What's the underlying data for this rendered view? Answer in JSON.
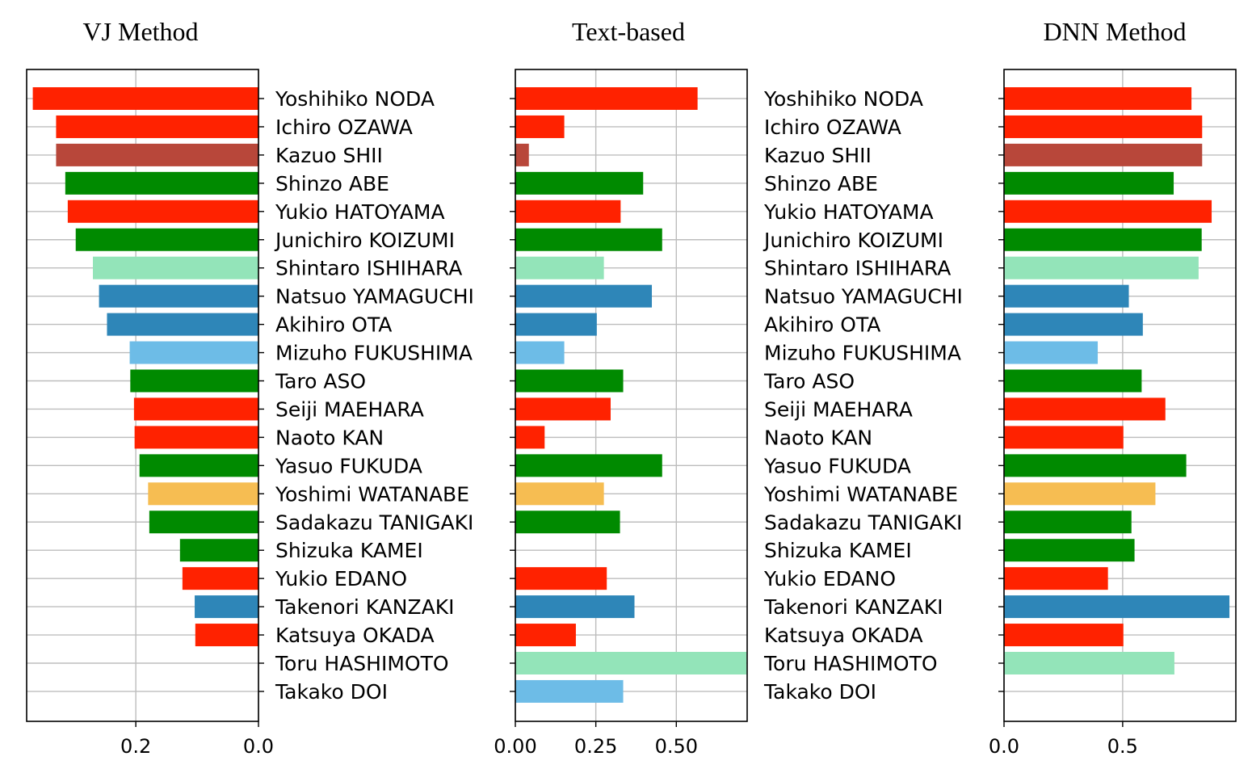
{
  "names": [
    "Yoshihiko NODA",
    "Ichiro OZAWA",
    "Kazuo SHII",
    "Shinzo ABE",
    "Yukio HATOYAMA",
    "Junichiro KOIZUMI",
    "Shintaro ISHIHARA",
    "Natsuo YAMAGUCHI",
    "Akihiro OTA",
    "Mizuho FUKUSHIMA",
    "Taro ASO",
    "Seiji MAEHARA",
    "Naoto KAN",
    "Yasuo FUKUDA",
    "Yoshimi WATANABE",
    "Sadakazu TANIGAKI",
    "Shizuka KAMEI",
    "Yukio EDANO",
    "Takenori KANZAKI",
    "Katsuya OKADA",
    "Toru HASHIMOTO",
    "Takako DOI"
  ],
  "colors": [
    "#ff2200",
    "#ff2200",
    "#b8473a",
    "#008a00",
    "#ff2200",
    "#008a00",
    "#93e4b9",
    "#2e86b8",
    "#2e86b8",
    "#6dbce7",
    "#008a00",
    "#ff2200",
    "#ff2200",
    "#008a00",
    "#f6bd52",
    "#008a00",
    "#008a00",
    "#ff2200",
    "#2e86b8",
    "#ff2200",
    "#93e4b9",
    "#6dbce7"
  ],
  "chart_data": [
    {
      "type": "bar",
      "orientation": "horizontal",
      "title": "VJ Method",
      "x_inverted": true,
      "xlim": [
        0.378,
        0.0
      ],
      "xticks": [
        0.2,
        0.0
      ],
      "xtick_labels": [
        "0.2",
        "0.0"
      ],
      "values": [
        0.368,
        0.33,
        0.33,
        0.315,
        0.311,
        0.298,
        0.27,
        0.26,
        0.247,
        0.21,
        0.209,
        0.203,
        0.202,
        0.194,
        0.18,
        0.178,
        0.128,
        0.124,
        0.104,
        0.103,
        0.0,
        0.0
      ]
    },
    {
      "type": "bar",
      "orientation": "horizontal",
      "title": "Text-based",
      "xlim": [
        0.0,
        0.72
      ],
      "xticks": [
        0.0,
        0.25,
        0.5
      ],
      "xtick_labels": [
        "0.00",
        "0.25",
        "0.50"
      ],
      "values": [
        0.566,
        0.152,
        0.042,
        0.397,
        0.327,
        0.456,
        0.275,
        0.424,
        0.253,
        0.152,
        0.335,
        0.296,
        0.091,
        0.456,
        0.275,
        0.325,
        0.0,
        0.284,
        0.37,
        0.188,
        0.718,
        0.335
      ]
    },
    {
      "type": "bar",
      "orientation": "horizontal",
      "title": "DNN Method",
      "xlim": [
        0.0,
        0.977
      ],
      "xticks": [
        0.0,
        0.5
      ],
      "xtick_labels": [
        "0.0",
        "0.5"
      ],
      "values": [
        0.79,
        0.835,
        0.835,
        0.715,
        0.875,
        0.833,
        0.82,
        0.526,
        0.585,
        0.395,
        0.58,
        0.68,
        0.503,
        0.768,
        0.638,
        0.537,
        0.55,
        0.438,
        0.95,
        0.503,
        0.718,
        0.0
      ]
    }
  ]
}
